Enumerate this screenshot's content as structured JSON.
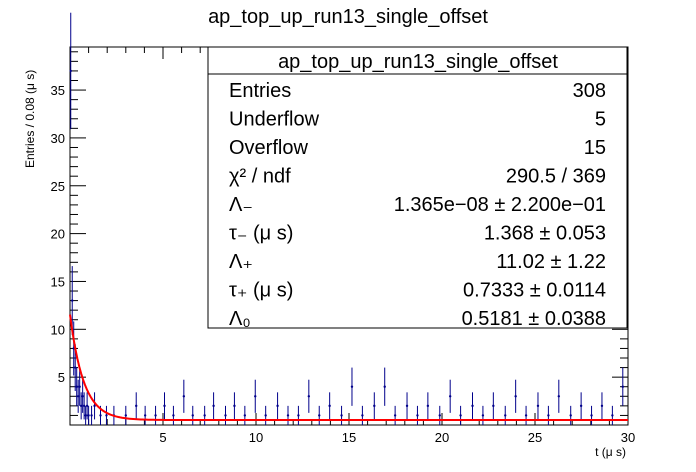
{
  "chart_data": {
    "type": "histogram",
    "title": "ap_top_up_run13_single_offset",
    "xlabel": "t (μ s)",
    "ylabel": "Entries / 0.08 (μ s)",
    "xlim": [
      0,
      30
    ],
    "ylim": [
      0,
      39.5
    ],
    "x_ticks": [
      "5",
      "10",
      "15",
      "20",
      "25",
      "30"
    ],
    "y_ticks": [
      "5",
      "10",
      "15",
      "20",
      "25",
      "30",
      "35"
    ],
    "bin_width": 0.08,
    "series": [
      {
        "type": "points-with-errors",
        "color": "#00008b",
        "points": [
          {
            "x": 0.04,
            "y": 37
          },
          {
            "x": 0.12,
            "y": 13
          },
          {
            "x": 0.2,
            "y": 8
          },
          {
            "x": 0.28,
            "y": 6
          },
          {
            "x": 0.36,
            "y": 4
          },
          {
            "x": 0.44,
            "y": 3
          },
          {
            "x": 0.52,
            "y": 4
          },
          {
            "x": 0.6,
            "y": 2
          },
          {
            "x": 0.68,
            "y": 3
          },
          {
            "x": 0.76,
            "y": 2
          },
          {
            "x": 0.84,
            "y": 1
          },
          {
            "x": 0.92,
            "y": 2
          },
          {
            "x": 1.0,
            "y": 1
          },
          {
            "x": 1.16,
            "y": 1
          },
          {
            "x": 1.32,
            "y": 2
          },
          {
            "x": 1.64,
            "y": 1
          },
          {
            "x": 1.96,
            "y": 1
          },
          {
            "x": 2.36,
            "y": 1
          },
          {
            "x": 3.0,
            "y": 1
          },
          {
            "x": 3.56,
            "y": 2
          },
          {
            "x": 4.04,
            "y": 1
          },
          {
            "x": 4.6,
            "y": 1
          },
          {
            "x": 5.08,
            "y": 2
          },
          {
            "x": 5.56,
            "y": 1
          },
          {
            "x": 6.12,
            "y": 3
          },
          {
            "x": 6.6,
            "y": 1
          },
          {
            "x": 7.24,
            "y": 1
          },
          {
            "x": 7.72,
            "y": 2
          },
          {
            "x": 8.36,
            "y": 1
          },
          {
            "x": 8.84,
            "y": 2
          },
          {
            "x": 9.4,
            "y": 1
          },
          {
            "x": 9.96,
            "y": 3
          },
          {
            "x": 10.52,
            "y": 1
          },
          {
            "x": 11.16,
            "y": 2
          },
          {
            "x": 11.72,
            "y": 1
          },
          {
            "x": 12.28,
            "y": 1
          },
          {
            "x": 12.84,
            "y": 3
          },
          {
            "x": 13.4,
            "y": 1
          },
          {
            "x": 13.96,
            "y": 2
          },
          {
            "x": 14.6,
            "y": 1
          },
          {
            "x": 15.16,
            "y": 4
          },
          {
            "x": 15.72,
            "y": 1
          },
          {
            "x": 16.36,
            "y": 2
          },
          {
            "x": 16.92,
            "y": 4
          },
          {
            "x": 17.48,
            "y": 1
          },
          {
            "x": 18.12,
            "y": 2
          },
          {
            "x": 18.68,
            "y": 1
          },
          {
            "x": 19.24,
            "y": 2
          },
          {
            "x": 19.88,
            "y": 1
          },
          {
            "x": 20.44,
            "y": 3
          },
          {
            "x": 21.0,
            "y": 1
          },
          {
            "x": 21.64,
            "y": 2
          },
          {
            "x": 22.2,
            "y": 1
          },
          {
            "x": 22.76,
            "y": 2
          },
          {
            "x": 23.4,
            "y": 1
          },
          {
            "x": 23.96,
            "y": 3
          },
          {
            "x": 24.52,
            "y": 1
          },
          {
            "x": 25.16,
            "y": 2
          },
          {
            "x": 25.72,
            "y": 1
          },
          {
            "x": 26.28,
            "y": 3
          },
          {
            "x": 26.92,
            "y": 1
          },
          {
            "x": 27.48,
            "y": 2
          },
          {
            "x": 28.04,
            "y": 1
          },
          {
            "x": 28.6,
            "y": 2
          },
          {
            "x": 29.16,
            "y": 1
          },
          {
            "x": 29.72,
            "y": 4
          }
        ]
      },
      {
        "type": "fit-curve",
        "color": "#ff0000",
        "model": "A_plus * exp(-t / tau_plus) + A0",
        "params": {
          "A_plus": 11.02,
          "tau_plus": 0.7333,
          "A0": 0.5181
        }
      }
    ],
    "stats_box": {
      "title": "ap_top_up_run13_single_offset",
      "rows": [
        {
          "name": "Entries",
          "value": "308"
        },
        {
          "name": "Underflow",
          "value": "5"
        },
        {
          "name": "Overflow",
          "value": "15"
        },
        {
          "name": "χ² / ndf",
          "value": "290.5 / 369"
        },
        {
          "name": "Λ₋",
          "value": "1.365e−08 ± 2.200e−01"
        },
        {
          "name": "τ₋ (μ s)",
          "value": "1.368 ± 0.053"
        },
        {
          "name": "Λ₊",
          "value": "11.02 ± 1.22"
        },
        {
          "name": "τ₊ (μ s)",
          "value": "0.7333 ± 0.0114"
        },
        {
          "name": "Λ₀",
          "value": "0.5181 ± 0.0388"
        }
      ]
    }
  }
}
